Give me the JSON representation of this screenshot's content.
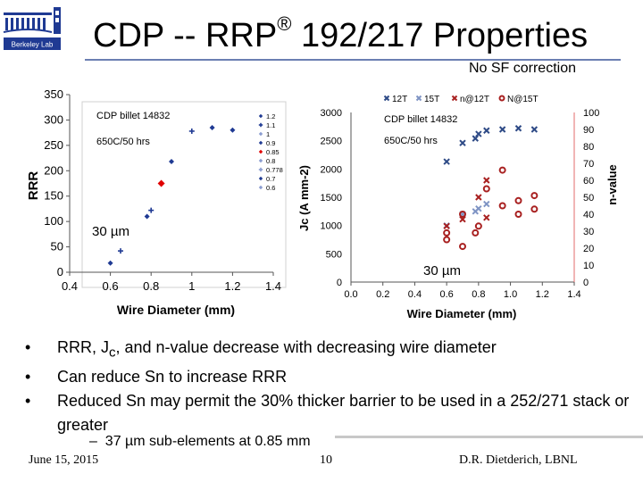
{
  "slide": {
    "title_main": "CDP -- RRP",
    "title_reg": "®",
    "title_rest": " 192/217 Properties",
    "subtitle": "No SF correction",
    "bullets": [
      "RRR, Jc, and n-value decrease with decreasing wire diameter",
      "Can reduce Sn to increase RRR",
      "Reduced Sn may permit the 30% thicker barrier to be used in a 252/271 stack or greater"
    ],
    "sub_bullet": "37 µm sub-elements at 0.85 mm",
    "footer": {
      "date": "June 15, 2015",
      "page": "10",
      "author": "D.R. Dietderich, LBNL"
    },
    "logo_text": "Berkeley Lab"
  },
  "chart_data": [
    {
      "type": "scatter",
      "ylabel": "RRR",
      "xlabel": "Wire Diameter (mm)",
      "xlim": [
        0.4,
        1.4
      ],
      "ylim": [
        0,
        350
      ],
      "xticks": [
        "0.4",
        "0.6",
        "0.8",
        "1",
        "1.2",
        "1.4"
      ],
      "yticks": [
        "0",
        "50",
        "100",
        "150",
        "200",
        "250",
        "300",
        "350"
      ],
      "annotations": [
        "CDP billet 14832",
        "650C/50 hrs",
        "30 µm"
      ],
      "legend": [
        "1.2",
        "1.1",
        "1",
        "0.9",
        "0.85",
        "0.8",
        "0.778",
        "0.7",
        "0.6"
      ],
      "grid": false,
      "points": [
        {
          "x": 0.6,
          "y": 18,
          "marker": "diamond",
          "color": "#1f3a93"
        },
        {
          "x": 0.65,
          "y": 42,
          "marker": "plus",
          "color": "#1f3a93"
        },
        {
          "x": 0.78,
          "y": 110,
          "marker": "diamond",
          "color": "#1f3a93"
        },
        {
          "x": 0.8,
          "y": 122,
          "marker": "plus",
          "color": "#1f3a93"
        },
        {
          "x": 0.85,
          "y": 175,
          "marker": "diamond",
          "color": "#e00000"
        },
        {
          "x": 0.9,
          "y": 218,
          "marker": "diamond",
          "color": "#1f3a93"
        },
        {
          "x": 1.0,
          "y": 278,
          "marker": "plus",
          "color": "#1f3a93"
        },
        {
          "x": 1.1,
          "y": 285,
          "marker": "diamond",
          "color": "#1f3a93"
        },
        {
          "x": 1.2,
          "y": 280,
          "marker": "diamond",
          "color": "#1f3a93"
        }
      ]
    },
    {
      "type": "scatter",
      "ylabel": "Jc (A mm-2)",
      "y2label": "n-value",
      "xlabel": "Wire Diameter (mm)",
      "xlim": [
        0.0,
        1.4
      ],
      "ylim": [
        0,
        3000
      ],
      "y2lim": [
        0,
        100
      ],
      "xticks": [
        "0.0",
        "0.2",
        "0.4",
        "0.6",
        "0.8",
        "1.0",
        "1.2",
        "1.4"
      ],
      "yticks": [
        "0",
        "500",
        "1000",
        "1500",
        "2000",
        "2500",
        "3000"
      ],
      "y2ticks": [
        "0",
        "10",
        "20",
        "30",
        "40",
        "50",
        "60",
        "70",
        "80",
        "90",
        "100"
      ],
      "annotations": [
        "CDP billet 14832",
        "650C/50 hrs",
        "30 µm"
      ],
      "legend": [
        "12T",
        "15T",
        "n@12T",
        "N@15T"
      ],
      "grid": false,
      "series": [
        {
          "name": "12T",
          "marker": "x",
          "color": "#2e4a86",
          "axis": "left",
          "x": [
            0.6,
            0.7,
            0.78,
            0.8,
            0.85,
            0.95,
            1.05,
            1.15
          ],
          "y": [
            2130,
            2460,
            2540,
            2620,
            2680,
            2700,
            2720,
            2700
          ]
        },
        {
          "name": "15T",
          "marker": "x",
          "color": "#7f94c4",
          "axis": "left",
          "x": [
            0.6,
            0.7,
            0.78,
            0.8,
            0.85
          ],
          "y": [
            1000,
            1200,
            1250,
            1300,
            1380
          ]
        },
        {
          "name": "n@12T",
          "marker": "x",
          "color": "#a82020",
          "axis": "right",
          "x": [
            0.6,
            0.7,
            0.8,
            0.85,
            0.85
          ],
          "y": [
            33,
            37,
            50,
            38,
            60
          ]
        },
        {
          "name": "N@15T",
          "marker": "circle",
          "color": "#a82020",
          "axis": "right",
          "x": [
            0.6,
            0.6,
            0.7,
            0.7,
            0.78,
            0.8,
            0.85,
            0.95,
            0.95,
            1.05,
            1.05,
            1.15,
            1.15
          ],
          "y": [
            25,
            29,
            21,
            40,
            29,
            33,
            55,
            45,
            66,
            48,
            40,
            51,
            43
          ]
        }
      ]
    }
  ]
}
